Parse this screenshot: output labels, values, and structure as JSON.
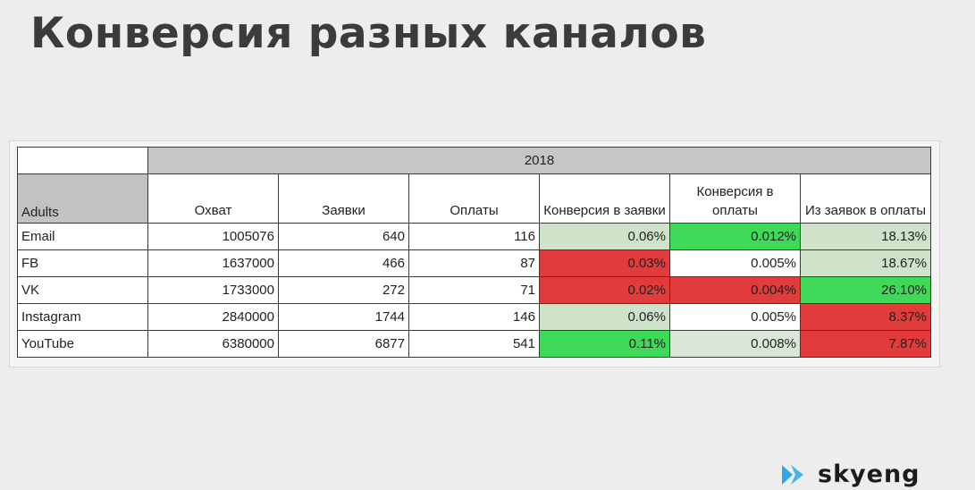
{
  "slide": {
    "title": "Конверсия разных каналов"
  },
  "table": {
    "year": "2018",
    "row_label_header": "Adults",
    "columns": [
      "Охват",
      "Заявки",
      "Оплаты",
      "Конверсия в заявки",
      "Конверсия в оплаты",
      "Из заявок в оплаты"
    ],
    "rows": [
      {
        "channel": "Email",
        "reach": "1005076",
        "leads": "640",
        "payments": "116",
        "conv_leads": "0.06%",
        "conv_payments": "0.012%",
        "leads_to_payments": "18.13%"
      },
      {
        "channel": "FB",
        "reach": "1637000",
        "leads": "466",
        "payments": "87",
        "conv_leads": "0.03%",
        "conv_payments": "0.005%",
        "leads_to_payments": "18.67%"
      },
      {
        "channel": "VK",
        "reach": "1733000",
        "leads": "272",
        "payments": "71",
        "conv_leads": "0.02%",
        "conv_payments": "0.004%",
        "leads_to_payments": "26.10%"
      },
      {
        "channel": "Instagram",
        "reach": "2840000",
        "leads": "1744",
        "payments": "146",
        "conv_leads": "0.06%",
        "conv_payments": "0.005%",
        "leads_to_payments": "8.37%"
      },
      {
        "channel": "YouTube",
        "reach": "6380000",
        "leads": "6877",
        "payments": "541",
        "conv_leads": "0.11%",
        "conv_payments": "0.008%",
        "leads_to_payments": "7.87%"
      }
    ]
  },
  "cell_colors": {
    "rows": [
      [
        "#cfe3cb",
        "#3fd95a",
        "#cfe3cb"
      ],
      [
        "#e23b3b",
        "#ffffff",
        "#cfe3cb"
      ],
      [
        "#e23b3b",
        "#e23b3b",
        "#3fd95a"
      ],
      [
        "#cfe3cb",
        "#ffffff",
        "#e23b3b"
      ],
      [
        "#3fd95a",
        "#d9e7d6",
        "#e23b3b"
      ]
    ]
  },
  "logo": {
    "text": "skyeng",
    "icon": "skyeng-chevron-logo-icon",
    "color": "#2fa8e8"
  }
}
